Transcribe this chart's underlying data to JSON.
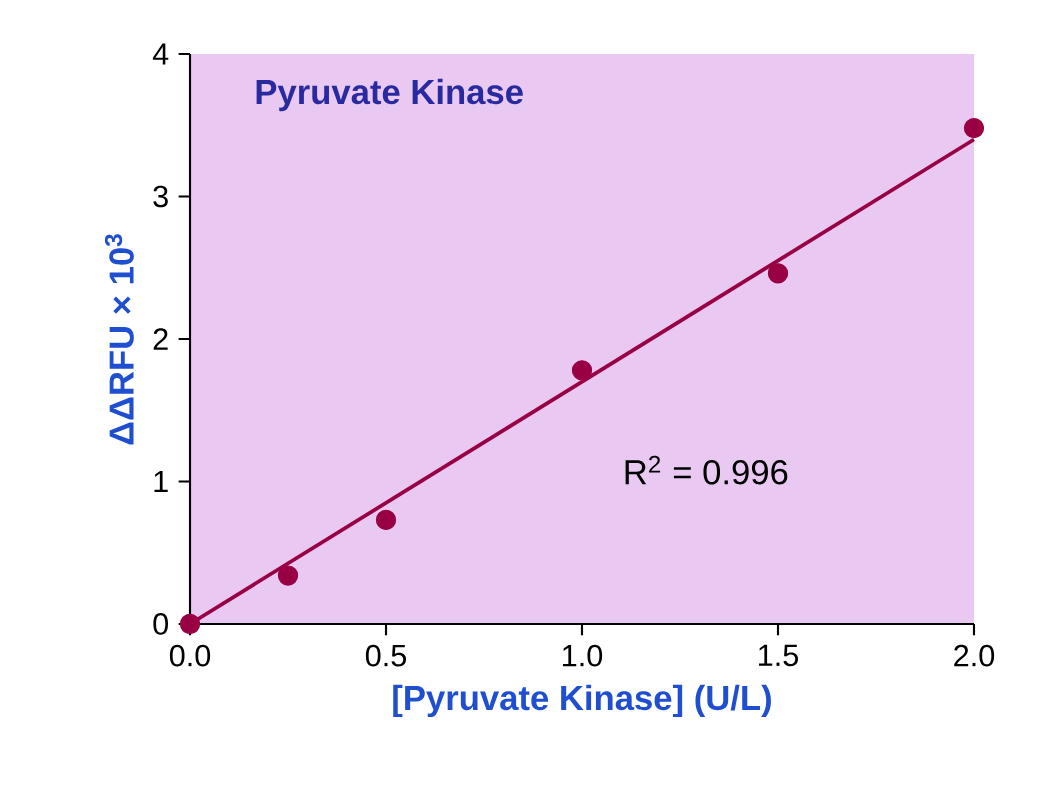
{
  "chart_data": {
    "type": "scatter",
    "title": "Pyruvate Kinase",
    "xlabel": "[Pyruvate Kinase] (U/L)",
    "ylabel": "ΔΔRFU × 10$^{3}$",
    "xlim": [
      0,
      2
    ],
    "ylim": [
      0,
      4
    ],
    "xticks": [
      {
        "value": 0,
        "label": "0.0"
      },
      {
        "value": 0.5,
        "label": "0.5"
      },
      {
        "value": 1,
        "label": "1.0"
      },
      {
        "value": 1.5,
        "label": "1.5"
      },
      {
        "value": 2,
        "label": "2.0"
      }
    ],
    "yticks": [
      0,
      1,
      2,
      3,
      4
    ],
    "marker": "circle",
    "series": [
      {
        "color": "#990044",
        "x": [
          0,
          0.25,
          0.5,
          1.0,
          1.5,
          2.0
        ],
        "values": [
          0,
          0.34,
          0.73,
          1.78,
          2.46,
          3.48
        ]
      },
      {
        "type": "line",
        "color": "#990044",
        "marker": "none",
        "x": [
          0,
          2.0
        ],
        "values": [
          0,
          3.4
        ]
      }
    ],
    "annotations": [
      "R$^{2}$ = 0.996"
    ]
  }
}
